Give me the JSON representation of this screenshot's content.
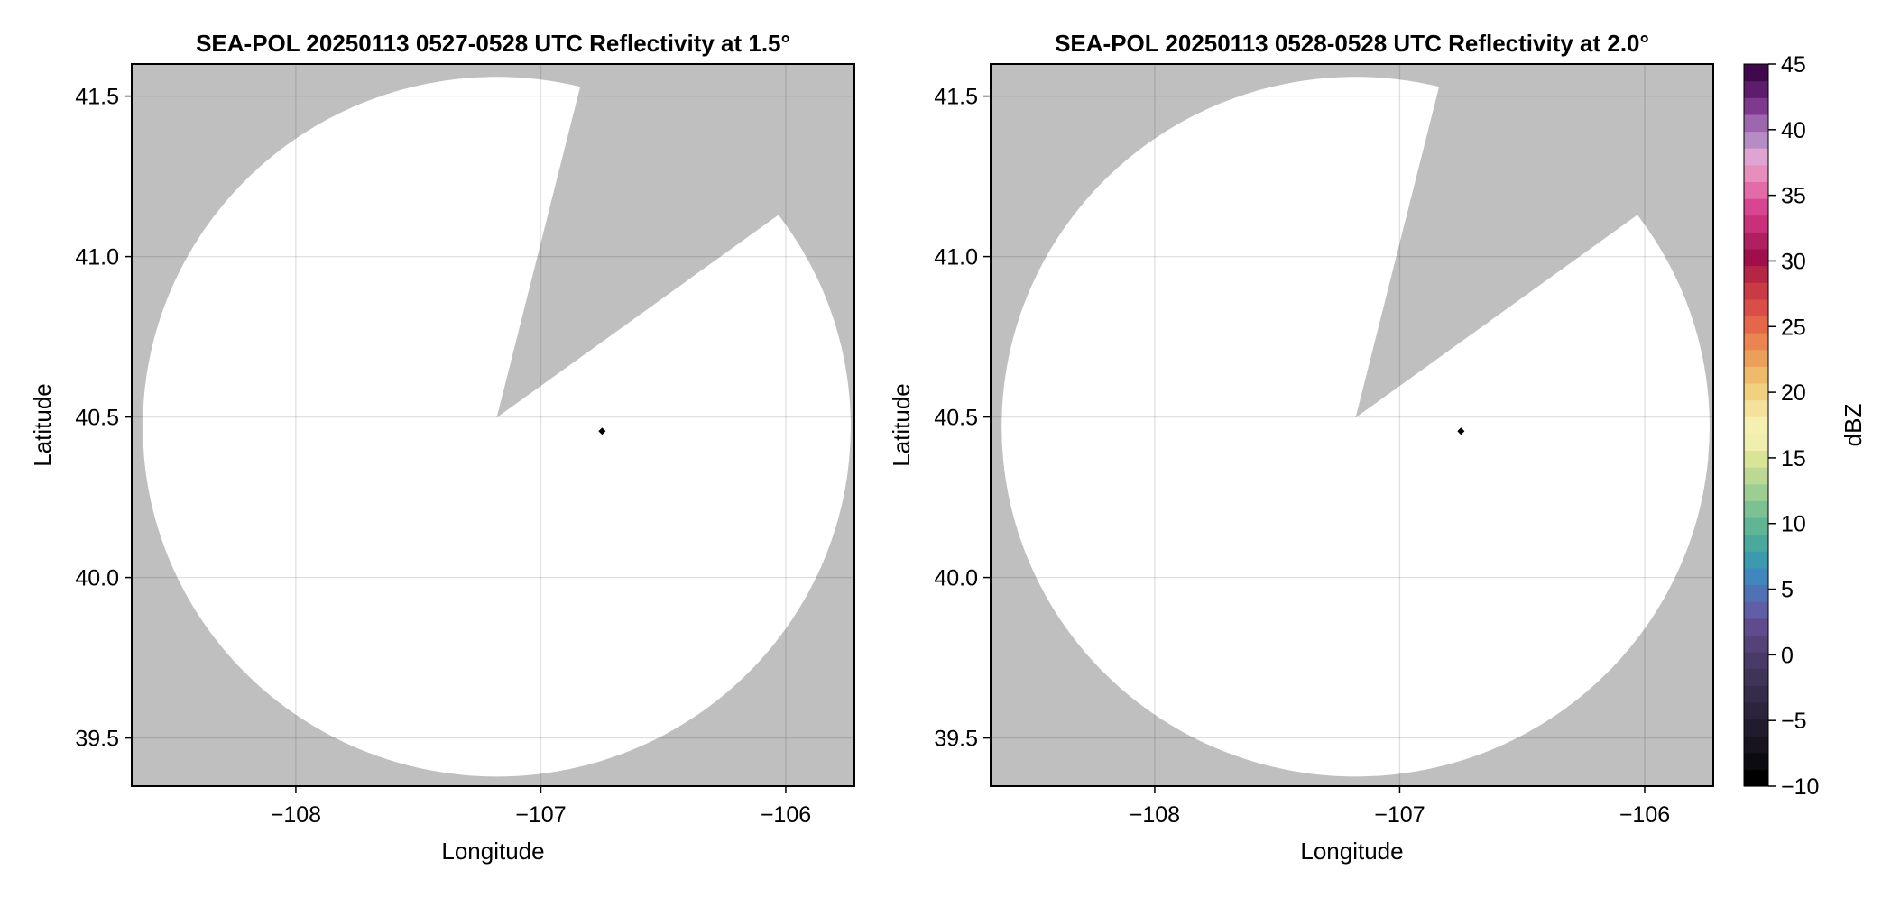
{
  "chart_data": [
    {
      "type": "heatmap",
      "title": "SEA-POL 20250113 0527-0528 UTC Reflectivity at 1.5°",
      "xlabel": "Longitude",
      "ylabel": "Latitude",
      "xlim": [
        -108.67,
        -105.72
      ],
      "ylim": [
        39.35,
        41.6
      ],
      "xticks": [
        -108,
        -107,
        -106
      ],
      "xtick_labels": [
        "−108",
        "−107",
        "−106"
      ],
      "yticks": [
        39.5,
        40.0,
        40.5,
        41.0,
        41.5
      ],
      "ytick_labels": [
        "39.5",
        "40.0",
        "40.5",
        "41.0",
        "41.5"
      ],
      "grid": true,
      "background_color": "#bfbfbf",
      "coverage_color": "#ffffff",
      "coverage": {
        "center": [
          -107.18,
          40.47
        ],
        "radius_lon": 1.445,
        "radius_lat": 1.09
      },
      "blocked_wedge": {
        "apex": [
          -107.18,
          40.498
        ],
        "edge1": [
          -106.84,
          41.527
        ],
        "edge2": [
          -106.055,
          41.116
        ]
      },
      "marker": {
        "lon": -106.75,
        "lat": 40.456,
        "color": "#000000"
      }
    },
    {
      "type": "heatmap",
      "title": "SEA-POL 20250113 0528-0528 UTC Reflectivity at 2.0°",
      "xlabel": "Longitude",
      "ylabel": "Latitude",
      "xlim": [
        -108.67,
        -105.72
      ],
      "ylim": [
        39.35,
        41.6
      ],
      "xticks": [
        -108,
        -107,
        -106
      ],
      "xtick_labels": [
        "−108",
        "−107",
        "−106"
      ],
      "yticks": [
        39.5,
        40.0,
        40.5,
        41.0,
        41.5
      ],
      "ytick_labels": [
        "39.5",
        "40.0",
        "40.5",
        "41.0",
        "41.5"
      ],
      "grid": true,
      "background_color": "#bfbfbf",
      "coverage_color": "#ffffff",
      "coverage": {
        "center": [
          -107.18,
          40.47
        ],
        "radius_lon": 1.445,
        "radius_lat": 1.09
      },
      "blocked_wedge": {
        "apex": [
          -107.18,
          40.498
        ],
        "edge1": [
          -106.84,
          41.527
        ],
        "edge2": [
          -106.055,
          41.116
        ]
      },
      "marker": {
        "lon": -106.75,
        "lat": 40.456,
        "color": "#000000"
      }
    }
  ],
  "colorbar": {
    "label": "dBZ",
    "range": [
      -10,
      45
    ],
    "ticks": [
      -10,
      -5,
      0,
      5,
      10,
      15,
      20,
      25,
      30,
      35,
      40,
      45
    ],
    "tick_labels": [
      "−10",
      "−5",
      "0",
      "5",
      "10",
      "15",
      "20",
      "25",
      "30",
      "35",
      "40",
      "45"
    ],
    "colors": [
      "#000000",
      "#0c0b12",
      "#17141f",
      "#211c2d",
      "#2b243b",
      "#352b4a",
      "#3f3358",
      "#4a3a68",
      "#554279",
      "#604b8c",
      "#5f5ea6",
      "#4f72b5",
      "#3f87bc",
      "#3b9aae",
      "#4aa99d",
      "#5fb594",
      "#7cc191",
      "#9ccd93",
      "#bcd994",
      "#d9e497",
      "#f1efad",
      "#f6f0b0",
      "#f4e29b",
      "#f1d07e",
      "#eebb6a",
      "#ec9f58",
      "#ea8450",
      "#e4674a",
      "#d94f48",
      "#c93a45",
      "#b52645",
      "#a00e4c",
      "#b02060",
      "#c9307a",
      "#d84692",
      "#e36ca8",
      "#e78ebd",
      "#e0a4d2",
      "#b68cc4",
      "#9c67ad",
      "#7e3a8e",
      "#5e1c6d",
      "#3f0a4c"
    ]
  }
}
